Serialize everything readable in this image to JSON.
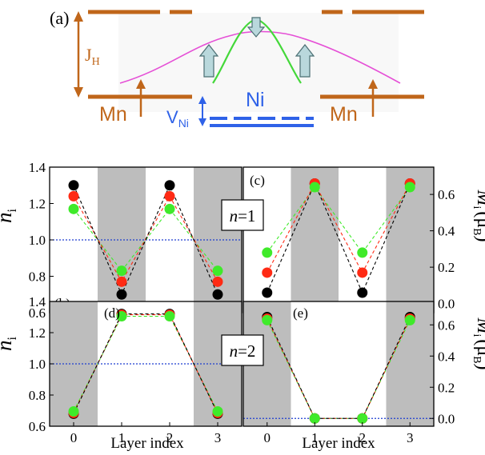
{
  "colors": {
    "mn_level": "#C0661A",
    "ni_level": "#2F62E8",
    "hybrid_magenta": "#E54FD6",
    "hybrid_green": "#44D83A",
    "arrow_fill": "#B9D8DC",
    "arrow_stroke": "#4A6E72",
    "shade": "#BDBDBD",
    "ref_line": "#1F3FD0",
    "series_black": "#000000",
    "series_red": "#FF2A14",
    "series_green": "#3FEA2A"
  },
  "schematic": {
    "panel_label": "(a)",
    "jh_label": "J",
    "jh_sub": "H",
    "mn_left_label": "Mn",
    "mn_right_label": "Mn",
    "ni_label": "Ni",
    "vni_label": "V",
    "vni_sub": "Ni"
  },
  "panel_labels": {
    "b": "(b)",
    "c": "(c)",
    "d": "(d)",
    "e": "(e)"
  },
  "axes": {
    "left_ylabel_main": "n",
    "left_ylabel_sub": "i",
    "right_ylabel_main": "M",
    "right_ylabel_sub": "i",
    "right_ylabel_unit_open": "(μ",
    "right_ylabel_unit_sub": "B",
    "right_ylabel_unit_close": ")",
    "xlabel": "Layer index",
    "n_ticks": [
      "1.4",
      "1.2",
      "1.0",
      "0.8",
      "0.6"
    ],
    "m_ticks": [
      "0.6",
      "0.4",
      "0.2",
      "0.0"
    ],
    "x_ticks": [
      "0",
      "1",
      "2",
      "3"
    ]
  },
  "annotations": {
    "row1_prefix": "n",
    "row1_suffix": "=1",
    "row2_prefix": "n",
    "row2_suffix": "=2"
  },
  "chart_data": [
    {
      "id": "b",
      "type": "scatter",
      "ylabel": "n_i",
      "xlim": [
        -0.5,
        3.5
      ],
      "ylim": [
        0.6,
        1.4
      ],
      "x": [
        0,
        1,
        2,
        3
      ],
      "shaded_layers": [
        1,
        3
      ],
      "reference_line": 1.0,
      "series": [
        {
          "color": "#000000",
          "values": [
            1.3,
            0.7,
            1.3,
            0.7
          ]
        },
        {
          "color": "#FF2A14",
          "values": [
            1.24,
            0.77,
            1.24,
            0.77
          ]
        },
        {
          "color": "#3FEA2A",
          "values": [
            1.17,
            0.83,
            1.17,
            0.83
          ]
        }
      ]
    },
    {
      "id": "c",
      "type": "scatter",
      "ylabel": "M_i (μB)",
      "xlim": [
        -0.5,
        3.5
      ],
      "ylim": [
        -0.05,
        0.75
      ],
      "x": [
        0,
        1,
        2,
        3
      ],
      "shaded_layers": [
        1,
        3
      ],
      "reference_line": 0.0,
      "series": [
        {
          "color": "#000000",
          "values": [
            0.06,
            0.66,
            0.06,
            0.66
          ]
        },
        {
          "color": "#FF2A14",
          "values": [
            0.17,
            0.66,
            0.17,
            0.66
          ]
        },
        {
          "color": "#3FEA2A",
          "values": [
            0.28,
            0.64,
            0.28,
            0.64
          ]
        }
      ]
    },
    {
      "id": "d",
      "type": "scatter",
      "ylabel": "n_i",
      "xlim": [
        -0.5,
        3.5
      ],
      "ylim": [
        0.6,
        1.4
      ],
      "x": [
        0,
        1,
        2,
        3
      ],
      "shaded_layers": [
        0,
        3
      ],
      "reference_line": 1.0,
      "series": [
        {
          "color": "#000000",
          "values": [
            0.68,
            1.32,
            1.32,
            0.68
          ]
        },
        {
          "color": "#FF2A14",
          "values": [
            0.685,
            1.315,
            1.315,
            0.685
          ]
        },
        {
          "color": "#3FEA2A",
          "values": [
            0.695,
            1.305,
            1.305,
            0.695
          ]
        }
      ]
    },
    {
      "id": "e",
      "type": "scatter",
      "ylabel": "M_i (μB)",
      "xlim": [
        -0.5,
        3.5
      ],
      "ylim": [
        -0.05,
        0.75
      ],
      "x": [
        0,
        1,
        2,
        3
      ],
      "shaded_layers": [
        0,
        3
      ],
      "reference_line": 0.0,
      "series": [
        {
          "color": "#000000",
          "values": [
            0.65,
            0.0,
            0.0,
            0.65
          ]
        },
        {
          "color": "#FF2A14",
          "values": [
            0.64,
            0.0,
            0.0,
            0.64
          ]
        },
        {
          "color": "#3FEA2A",
          "values": [
            0.63,
            0.0,
            0.0,
            0.63
          ]
        }
      ]
    }
  ]
}
